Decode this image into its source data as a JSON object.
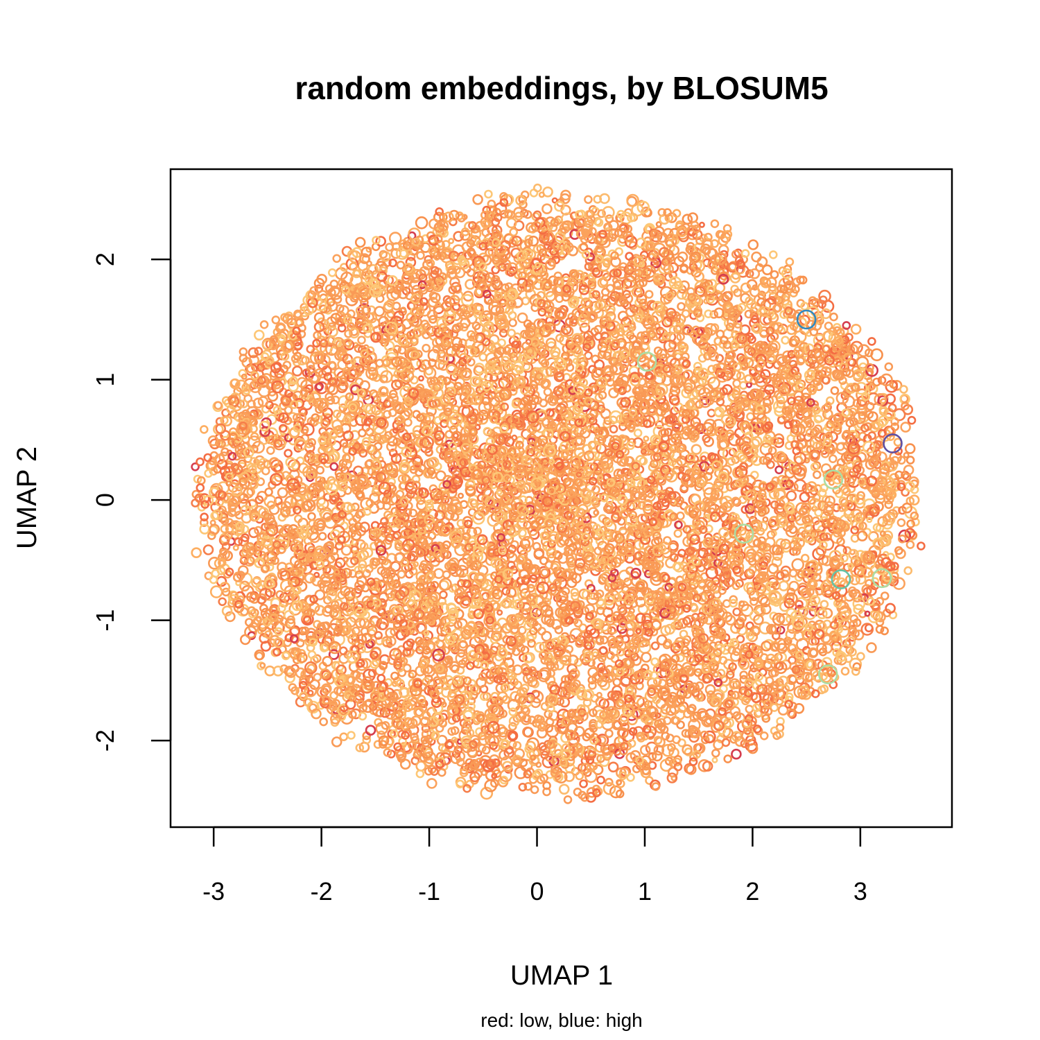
{
  "chart_data": {
    "type": "scatter",
    "title": "random embeddings, by BLOSUM5",
    "xlabel": "UMAP 1",
    "ylabel": "UMAP 2",
    "subtitle": "red: low, blue: high",
    "xlim": [
      -3.4,
      3.85
    ],
    "ylim": [
      -2.72,
      2.75
    ],
    "x_ticks": [
      -3,
      -2,
      -1,
      0,
      1,
      2,
      3
    ],
    "y_ticks": [
      -2,
      -1,
      0,
      1,
      2
    ],
    "grid": false,
    "legend": "none",
    "cloud": {
      "center": [
        0.2,
        0.03
      ],
      "radius_x": 3.35,
      "radius_y": 2.5,
      "n_points": 9000
    },
    "palette": [
      "#d53e4f",
      "#f46d43",
      "#fdae61",
      "#fee08b",
      "#e6f598",
      "#abdda4",
      "#66c2a5",
      "#3288bd",
      "#5e4fa2"
    ],
    "base_color": "#f99a56",
    "outliers": [
      {
        "x": 3.3,
        "y": 0.47,
        "color": "#5e4fa2"
      },
      {
        "x": 2.82,
        "y": -0.66,
        "color": "#66c2a5"
      },
      {
        "x": 2.75,
        "y": 0.17,
        "color": "#abdda4"
      },
      {
        "x": 2.5,
        "y": 1.5,
        "color": "#3288bd"
      },
      {
        "x": 1.02,
        "y": 1.15,
        "color": "#abdda4"
      },
      {
        "x": 2.7,
        "y": -1.45,
        "color": "#abdda4"
      },
      {
        "x": 3.2,
        "y": -0.65,
        "color": "#abdda4"
      },
      {
        "x": 1.92,
        "y": -0.28,
        "color": "#abdda4"
      }
    ]
  }
}
